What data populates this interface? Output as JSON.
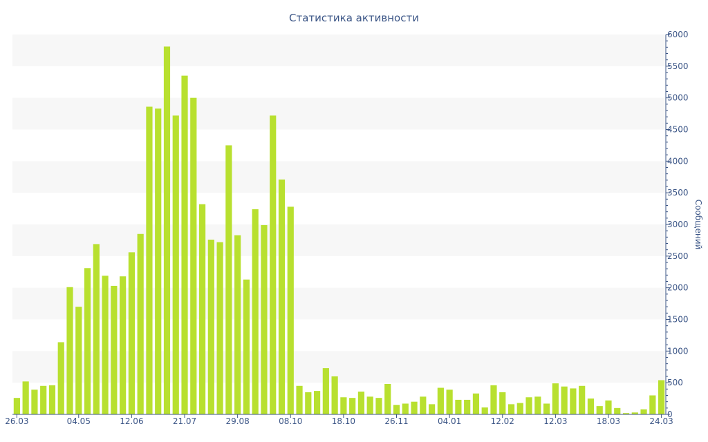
{
  "chart_data": {
    "type": "bar",
    "title": "Статистика активности",
    "ylabel": "Сообщений",
    "xlabel": "",
    "ylim": [
      0,
      6000
    ],
    "y_ticks": [
      0,
      500,
      1000,
      1500,
      2000,
      2500,
      3000,
      3500,
      4000,
      4500,
      5000,
      5500,
      6000
    ],
    "y_axis_side": "right",
    "grid": "alternating horizontal bands",
    "x_tick_labels": [
      {
        "index": 0,
        "label": "26.03"
      },
      {
        "index": 7,
        "label": "04.05"
      },
      {
        "index": 13,
        "label": "12.06"
      },
      {
        "index": 19,
        "label": "21.07"
      },
      {
        "index": 25,
        "label": "29.08"
      },
      {
        "index": 31,
        "label": "08.10"
      },
      {
        "index": 37,
        "label": "18.10"
      },
      {
        "index": 43,
        "label": "26.11"
      },
      {
        "index": 49,
        "label": "04.01"
      },
      {
        "index": 55,
        "label": "12.02"
      },
      {
        "index": 61,
        "label": "12.03"
      },
      {
        "index": 67,
        "label": "18.03"
      },
      {
        "index": 73,
        "label": "24.03"
      }
    ],
    "values": [
      260,
      520,
      390,
      450,
      460,
      1140,
      2010,
      1700,
      2310,
      2690,
      2190,
      2030,
      2180,
      2560,
      2850,
      4860,
      4830,
      5810,
      4720,
      5350,
      5000,
      3320,
      2760,
      2720,
      4250,
      2830,
      2130,
      3240,
      2990,
      4720,
      3710,
      3280,
      450,
      350,
      370,
      730,
      600,
      270,
      260,
      360,
      280,
      260,
      480,
      150,
      170,
      200,
      280,
      160,
      420,
      390,
      230,
      230,
      330,
      110,
      460,
      350,
      160,
      180,
      270,
      280,
      170,
      490,
      440,
      410,
      450,
      250,
      130,
      220,
      100,
      20,
      30,
      80,
      300,
      540
    ],
    "colors": {
      "bar": "#b8e02f",
      "band": "#f7f7f7",
      "axis": "#3b5586",
      "text": "#3b5586"
    }
  }
}
